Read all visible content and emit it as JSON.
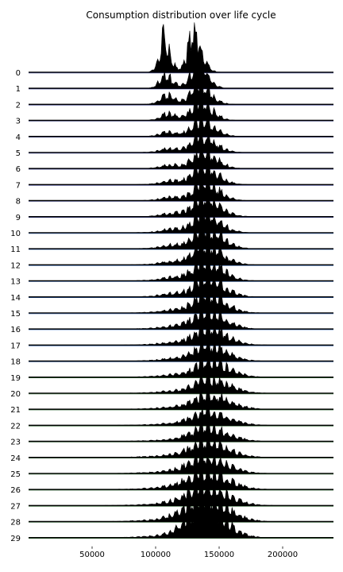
{
  "chart_data": {
    "type": "ridgeline",
    "title": "Consumption distribution over life cycle",
    "xlabel": "",
    "ylabel": "",
    "xlim": [
      0,
      240000
    ],
    "x_ticks": [
      50000,
      100000,
      150000,
      200000
    ],
    "x_tick_labels": [
      "50000",
      "100000",
      "150000",
      "200000"
    ],
    "grid": false,
    "legend": "none",
    "colors": {
      "fill": "#000000",
      "baseline_early": "#1a237e",
      "baseline_mid": "#0d47a1",
      "baseline_late": "#1b5e20"
    },
    "periods": [
      {
        "label": "0",
        "center": 130000,
        "spread": 5000,
        "left_center": 107000,
        "left_share": 0.9,
        "peak": 2.6
      },
      {
        "label": "1",
        "center": 133000,
        "spread": 6000,
        "left_center": 108000,
        "left_share": 0.5,
        "peak": 1.6
      },
      {
        "label": "2",
        "center": 134000,
        "spread": 7000,
        "left_center": 109000,
        "left_share": 0.4,
        "peak": 1.3
      },
      {
        "label": "3",
        "center": 135000,
        "spread": 7500,
        "left_center": 110000,
        "left_share": 0.3,
        "peak": 1.2
      },
      {
        "label": "4",
        "center": 136000,
        "spread": 8000,
        "left_center": 110000,
        "left_share": 0.22,
        "peak": 1.1
      },
      {
        "label": "5",
        "center": 136000,
        "spread": 8500,
        "left_center": 111000,
        "left_share": 0.18,
        "peak": 1.1
      },
      {
        "label": "6",
        "center": 137000,
        "spread": 8500,
        "left_center": 111000,
        "left_share": 0.15,
        "peak": 1.15
      },
      {
        "label": "7",
        "center": 137000,
        "spread": 9000,
        "left_center": 112000,
        "left_share": 0.14,
        "peak": 1.2
      },
      {
        "label": "8",
        "center": 138000,
        "spread": 9000,
        "left_center": 112000,
        "left_share": 0.13,
        "peak": 1.2
      },
      {
        "label": "9",
        "center": 138000,
        "spread": 9500,
        "left_center": 113000,
        "left_share": 0.12,
        "peak": 1.25
      },
      {
        "label": "10",
        "center": 138000,
        "spread": 9500,
        "left_center": 113000,
        "left_share": 0.12,
        "peak": 1.3
      },
      {
        "label": "11",
        "center": 139000,
        "spread": 10000,
        "left_center": 113000,
        "left_share": 0.11,
        "peak": 1.35
      },
      {
        "label": "12",
        "center": 139000,
        "spread": 10000,
        "left_center": 114000,
        "left_share": 0.11,
        "peak": 1.35
      },
      {
        "label": "13",
        "center": 139000,
        "spread": 10500,
        "left_center": 114000,
        "left_share": 0.1,
        "peak": 1.3
      },
      {
        "label": "14",
        "center": 140000,
        "spread": 10500,
        "left_center": 114000,
        "left_share": 0.1,
        "peak": 1.3
      },
      {
        "label": "15",
        "center": 140000,
        "spread": 11000,
        "left_center": 115000,
        "left_share": 0.1,
        "peak": 1.25
      },
      {
        "label": "16",
        "center": 140000,
        "spread": 11000,
        "left_center": 115000,
        "left_share": 0.09,
        "peak": 1.2
      },
      {
        "label": "17",
        "center": 141000,
        "spread": 11500,
        "left_center": 115000,
        "left_share": 0.09,
        "peak": 1.15
      },
      {
        "label": "18",
        "center": 141000,
        "spread": 11500,
        "left_center": 116000,
        "left_share": 0.09,
        "peak": 1.1
      },
      {
        "label": "19",
        "center": 142000,
        "spread": 12000,
        "left_center": 116000,
        "left_share": 0.08,
        "peak": 1.05
      },
      {
        "label": "20",
        "center": 142000,
        "spread": 12000,
        "left_center": 116000,
        "left_share": 0.08,
        "peak": 1.0
      },
      {
        "label": "21",
        "center": 142000,
        "spread": 12500,
        "left_center": 117000,
        "left_share": 0.08,
        "peak": 0.95
      },
      {
        "label": "22",
        "center": 141000,
        "spread": 12500,
        "left_center": 117000,
        "left_share": 0.08,
        "peak": 0.95
      },
      {
        "label": "23",
        "center": 140000,
        "spread": 12500,
        "left_center": 117000,
        "left_share": 0.08,
        "peak": 0.95
      },
      {
        "label": "24",
        "center": 140000,
        "spread": 13000,
        "left_center": 117000,
        "left_share": 0.09,
        "peak": 1.0
      },
      {
        "label": "25",
        "center": 139000,
        "spread": 13000,
        "left_center": 117000,
        "left_share": 0.1,
        "peak": 1.05
      },
      {
        "label": "26",
        "center": 139000,
        "spread": 13500,
        "left_center": 117000,
        "left_share": 0.12,
        "peak": 1.15
      },
      {
        "label": "27",
        "center": 139000,
        "spread": 13500,
        "left_center": 118000,
        "left_share": 0.14,
        "peak": 1.25
      },
      {
        "label": "28",
        "center": 139000,
        "spread": 13500,
        "left_center": 120000,
        "left_share": 0.2,
        "peak": 1.5
      },
      {
        "label": "29",
        "center": 140000,
        "spread": 12000,
        "left_center": 126000,
        "left_share": 0.35,
        "peak": 1.9
      }
    ]
  }
}
